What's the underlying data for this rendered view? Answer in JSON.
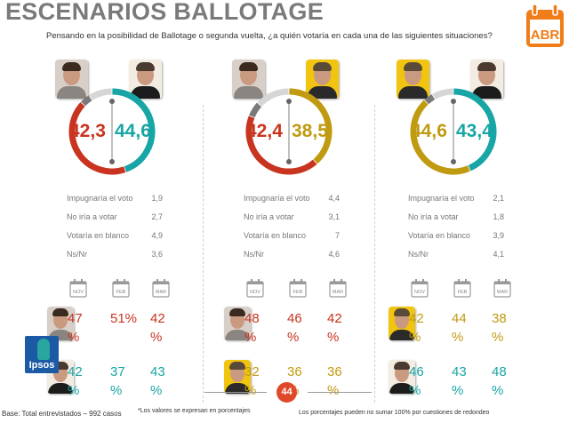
{
  "title": "ESCENARIOS BALLOTAGE",
  "subtitle": "Pensando en la posibilidad de Ballotage o segunda vuelta, ¿a quién votaría en cada una de las siguientes situaciones?",
  "month_badge": "ABR",
  "colors": {
    "massa": "#c8341f",
    "scioli": "#18a5a5",
    "macri": "#c09a10",
    "other_dark": "#7a7a7a",
    "other_light": "#d6d6d6",
    "accent": "#f07d1a"
  },
  "stat_labels": [
    "Impugnaría el voto",
    "No iría a votar",
    "Votaría en blanco",
    "Ns/Nr"
  ],
  "months": [
    "NOV",
    "FEB",
    "MAR"
  ],
  "chart_data": [
    {
      "type": "pie",
      "left": {
        "candidate": "massa",
        "value": 42.3,
        "label": "42,3"
      },
      "right": {
        "candidate": "scioli",
        "value": 44.6,
        "label": "44,6"
      },
      "stats": [
        "1,9",
        "2,7",
        "4,9",
        "3,6"
      ],
      "history": [
        {
          "candidate": "massa",
          "values": [
            "47",
            "51%",
            "42"
          ],
          "unit": [
            "%",
            "",
            "%"
          ]
        },
        {
          "candidate": "scioli",
          "values": [
            "42",
            "37",
            "43"
          ],
          "unit": [
            "%",
            "%",
            "%"
          ]
        }
      ]
    },
    {
      "type": "pie",
      "left": {
        "candidate": "massa",
        "value": 42.4,
        "label": "42,4"
      },
      "right": {
        "candidate": "macri",
        "value": 38.5,
        "label": "38,5"
      },
      "stats": [
        "4,4",
        "3,1",
        "7",
        "4,6"
      ],
      "history": [
        {
          "candidate": "massa",
          "values": [
            "48",
            "46",
            "42"
          ],
          "unit": [
            "%",
            "%",
            "%"
          ]
        },
        {
          "candidate": "macri",
          "values": [
            "32",
            "36",
            "36"
          ],
          "unit": [
            "%",
            "%",
            "%"
          ]
        }
      ]
    },
    {
      "type": "pie",
      "left": {
        "candidate": "macri",
        "value": 44.6,
        "label": "44,6"
      },
      "right": {
        "candidate": "scioli",
        "value": 43.4,
        "label": "43,4"
      },
      "stats": [
        "2,1",
        "1,8",
        "3,9",
        "4,1"
      ],
      "history": [
        {
          "candidate": "macri",
          "values": [
            "42",
            "44",
            "38"
          ],
          "unit": [
            "%",
            "%",
            "%"
          ]
        },
        {
          "candidate": "scioli",
          "values": [
            "46",
            "43",
            "48"
          ],
          "unit": [
            "%",
            "%",
            "%"
          ]
        }
      ]
    }
  ],
  "footer": {
    "logo": "Ipsos",
    "page": "44",
    "base": "Base: Total entrevistados – 992 casos",
    "note1": "*Los valores se expresan en porcentajes",
    "note2": "Los porcentajes pueden no sumar 100% por cuestiones de redondeo"
  }
}
